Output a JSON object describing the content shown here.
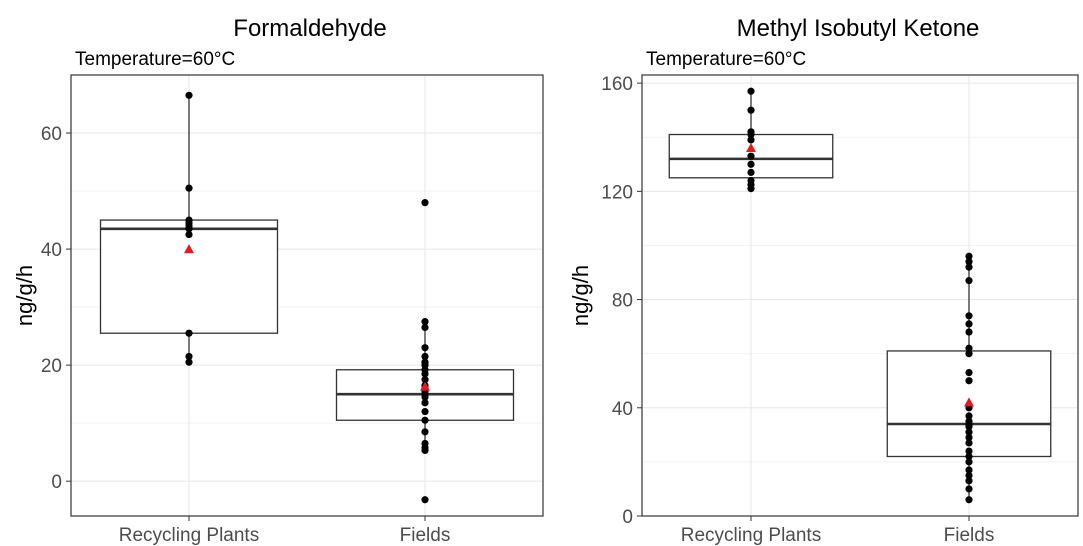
{
  "chart_data": [
    {
      "type": "box",
      "title": "Formaldehyde",
      "subtitle": "Temperature=60°C",
      "ylabel": "ng/g/h",
      "ylim": [
        -6,
        70
      ],
      "yticks": [
        0,
        20,
        40,
        60
      ],
      "grid": true,
      "categories": [
        "Recycling Plants",
        "Fields"
      ],
      "boxes": [
        {
          "category": "Recycling Plants",
          "q1": 25.5,
          "median": 43.5,
          "q3": 45,
          "whisker_low": 20.5,
          "whisker_high": 66.5,
          "mean": 40,
          "points": [
            66.5,
            50.5,
            45,
            44.5,
            44,
            43.5,
            42.5,
            25.5,
            21.5,
            20.5
          ]
        },
        {
          "category": "Fields",
          "q1": 10.5,
          "median": 15,
          "q3": 19.2,
          "whisker_low": 5.3,
          "whisker_high": 27.5,
          "mean": 16.3,
          "points": [
            48,
            27.5,
            26.5,
            23,
            21.5,
            20.5,
            20,
            19.2,
            18.5,
            17.5,
            16.5,
            16,
            15.5,
            15,
            14.5,
            13.5,
            12,
            10.5,
            8.5,
            6.5,
            5.8,
            5.3,
            -3.2
          ]
        }
      ]
    },
    {
      "type": "box",
      "title": "Methyl Isobutyl Ketone",
      "subtitle": "Temperature=60°C",
      "ylabel": "ng/g/h",
      "ylim": [
        0,
        163
      ],
      "yticks": [
        0,
        40,
        80,
        120,
        160
      ],
      "grid": true,
      "categories": [
        "Recycling Plants",
        "Fields"
      ],
      "boxes": [
        {
          "category": "Recycling Plants",
          "q1": 125,
          "median": 132,
          "q3": 141,
          "whisker_low": 121,
          "whisker_high": 157,
          "mean": 136,
          "points": [
            157,
            150,
            142,
            141,
            139,
            133,
            130,
            127,
            124,
            122.5,
            121
          ]
        },
        {
          "category": "Fields",
          "q1": 22,
          "median": 34,
          "q3": 61,
          "whisker_low": 6,
          "whisker_high": 96,
          "mean": 42,
          "points": [
            96,
            94,
            92,
            87,
            74,
            71,
            68,
            62,
            60,
            53,
            50,
            40,
            37,
            35,
            34,
            33,
            31,
            29,
            27,
            24,
            22,
            20,
            17,
            15,
            13,
            10,
            6
          ]
        }
      ]
    }
  ]
}
